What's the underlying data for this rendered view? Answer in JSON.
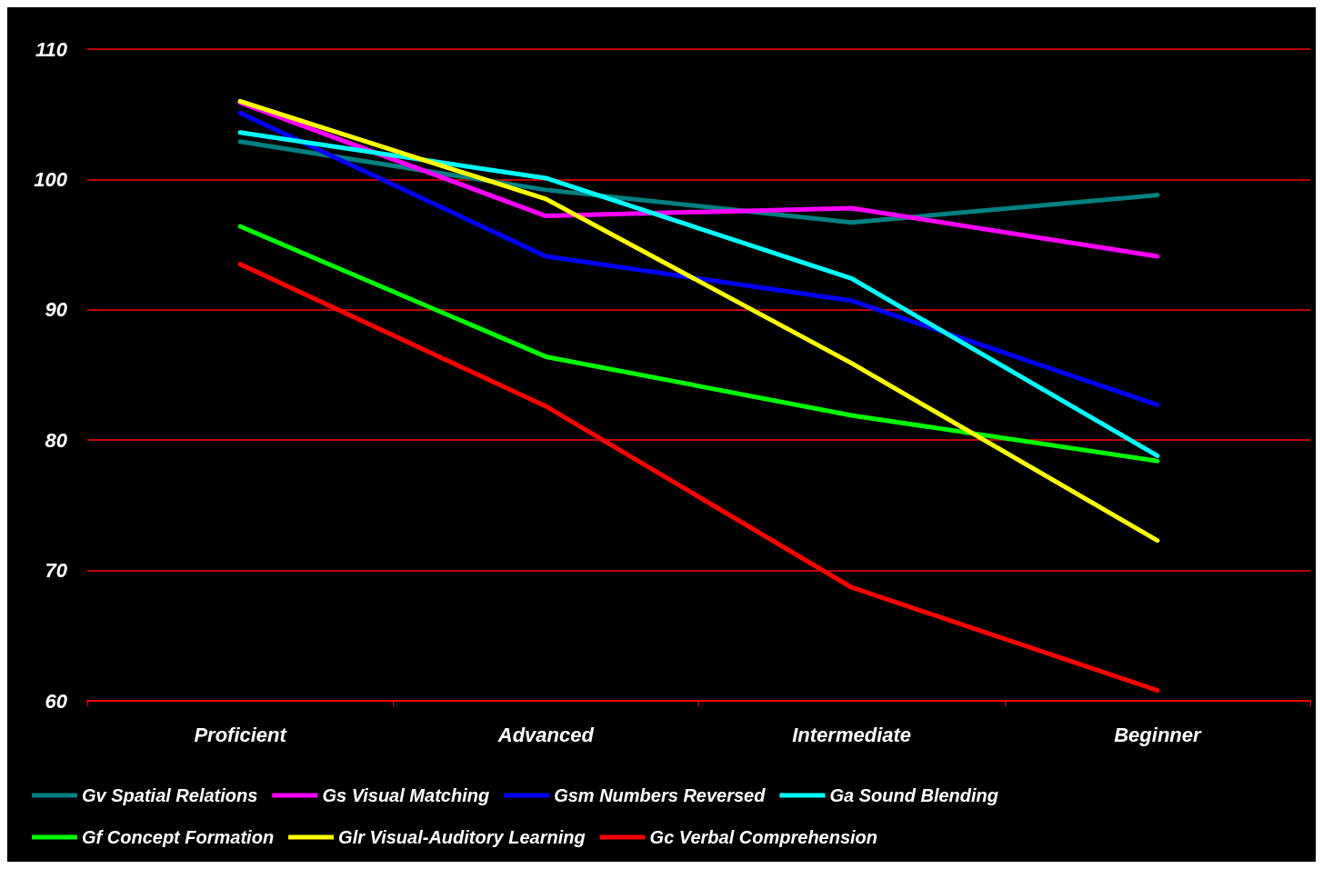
{
  "chart_data": {
    "type": "line",
    "categories": [
      "Proficient",
      "Advanced",
      "Intermediate",
      "Beginner"
    ],
    "series": [
      {
        "name": "Gv Spatial Relations",
        "color": "#008080",
        "values": [
          102.9,
          99.2,
          96.7,
          98.8
        ]
      },
      {
        "name": "Gs Visual Matching",
        "color": "#ff00ff",
        "values": [
          105.9,
          97.2,
          97.8,
          94.1
        ]
      },
      {
        "name": "Gsm Numbers Reversed",
        "color": "#0000ff",
        "values": [
          105.1,
          94.1,
          90.7,
          82.7
        ]
      },
      {
        "name": "Ga Sound Blending",
        "color": "#00ffff",
        "values": [
          103.6,
          100.1,
          92.4,
          78.8
        ]
      },
      {
        "name": "Gf Concept Formation",
        "color": "#00ff00",
        "values": [
          96.4,
          86.4,
          81.9,
          78.4
        ]
      },
      {
        "name": "Glr Visual-Auditory Learning",
        "color": "#ffff00",
        "values": [
          106.0,
          98.5,
          85.9,
          72.3
        ]
      },
      {
        "name": "Gc Verbal Comprehension",
        "color": "#ff0000",
        "values": [
          93.5,
          82.6,
          68.7,
          60.8
        ]
      }
    ],
    "ylim": [
      60,
      110
    ],
    "yticks": [
      60,
      70,
      80,
      90,
      100,
      110
    ],
    "grid": "y",
    "legend": "bottom",
    "marker": "none",
    "line_style": "solid"
  }
}
